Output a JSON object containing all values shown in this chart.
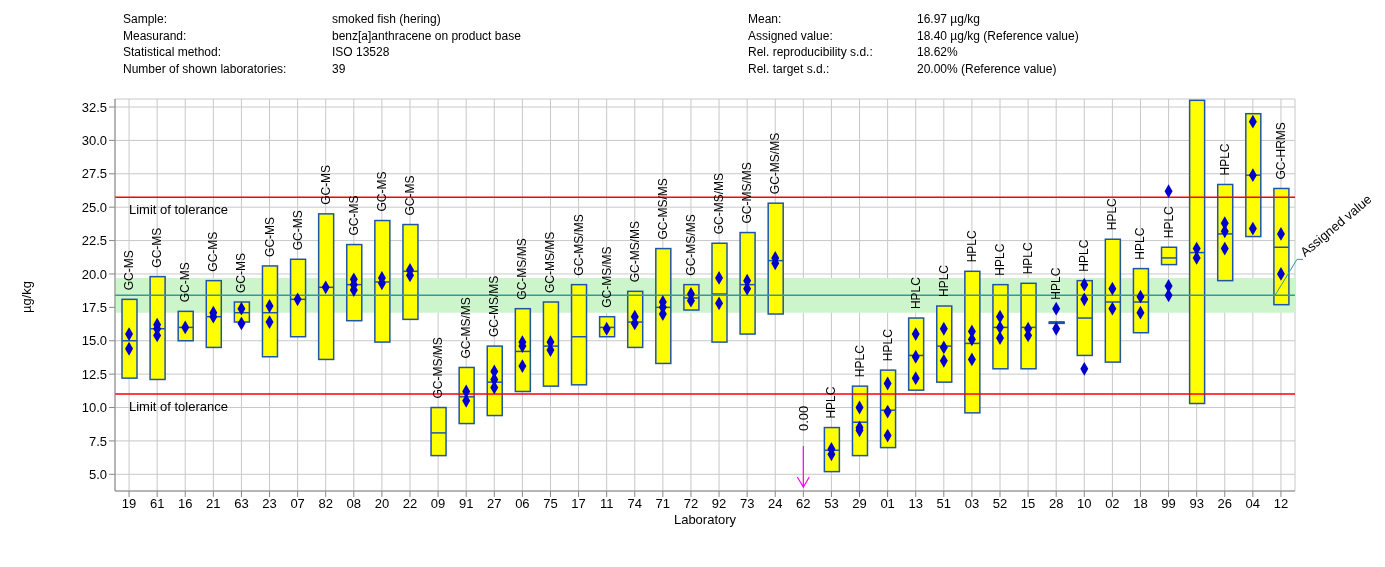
{
  "chart_data": {
    "type": "box",
    "ylabel": "µg/kg",
    "xlabel": "Laboratory",
    "categories": [
      "19",
      "61",
      "16",
      "21",
      "63",
      "23",
      "07",
      "82",
      "08",
      "20",
      "22",
      "09",
      "91",
      "27",
      "06",
      "75",
      "17",
      "11",
      "74",
      "71",
      "72",
      "92",
      "73",
      "24",
      "62",
      "53",
      "29",
      "01",
      "13",
      "51",
      "03",
      "52",
      "15",
      "28",
      "10",
      "02",
      "18",
      "99",
      "93",
      "26",
      "04",
      "12"
    ],
    "ylim": [
      3.75,
      33.1
    ],
    "yticks": [
      {
        "value": 5,
        "label": "5.0"
      },
      {
        "value": 7.5,
        "label": "7.5"
      },
      {
        "value": 10,
        "label": "10.0"
      },
      {
        "value": 12.5,
        "label": "12.5"
      },
      {
        "value": 15,
        "label": "15.0"
      },
      {
        "value": 17.5,
        "label": "17.5"
      },
      {
        "value": 20,
        "label": "20.0"
      },
      {
        "value": 22.5,
        "label": "22.5"
      },
      {
        "value": 25,
        "label": "25.0"
      },
      {
        "value": 27.5,
        "label": "27.5"
      },
      {
        "value": 30,
        "label": "30.0"
      },
      {
        "value": 32.5,
        "label": "32.5"
      }
    ],
    "grid": true,
    "marker": "diamond",
    "series": [
      {
        "type": "box",
        "color": "#ffff00",
        "boxes": [
          {
            "low": 12.2,
            "q1": 12.2,
            "median": 15.0,
            "q3": 18.1,
            "high": 18.1
          },
          {
            "low": 12.1,
            "q1": 12.1,
            "median": 15.9,
            "q3": 19.8,
            "high": 19.8
          },
          {
            "low": 15.0,
            "q1": 15.0,
            "median": 16.0,
            "q3": 17.2,
            "high": 17.2
          },
          {
            "low": 14.5,
            "q1": 14.5,
            "median": 16.8,
            "q3": 19.5,
            "high": 19.5
          },
          {
            "low": 16.4,
            "q1": 16.4,
            "median": 17.1,
            "q3": 17.9,
            "high": 17.9
          },
          {
            "low": 13.8,
            "q1": 13.8,
            "median": 17.1,
            "q3": 20.6,
            "high": 20.6
          },
          {
            "low": 15.3,
            "q1": 15.3,
            "median": 18.1,
            "q3": 21.1,
            "high": 21.1
          },
          {
            "low": 13.6,
            "q1": 13.6,
            "median": 19.0,
            "q3": 24.5,
            "high": 24.5
          },
          {
            "low": 16.5,
            "q1": 16.5,
            "median": 19.2,
            "q3": 22.2,
            "high": 22.2
          },
          {
            "low": 14.9,
            "q1": 14.9,
            "median": 19.4,
            "q3": 24.0,
            "high": 24.0
          },
          {
            "low": 16.6,
            "q1": 16.6,
            "median": 20.2,
            "q3": 23.7,
            "high": 23.7
          },
          {
            "low": 6.4,
            "q1": 6.4,
            "median": 8.1,
            "q3": 10.0,
            "high": 10.0
          },
          {
            "low": 8.8,
            "q1": 8.8,
            "median": 10.8,
            "q3": 13.0,
            "high": 13.0
          },
          {
            "low": 9.4,
            "q1": 9.4,
            "median": 11.9,
            "q3": 14.6,
            "high": 14.6
          },
          {
            "low": 11.2,
            "q1": 11.2,
            "median": 14.2,
            "q3": 17.4,
            "high": 17.4
          },
          {
            "low": 11.6,
            "q1": 11.6,
            "median": 14.6,
            "q3": 17.9,
            "high": 17.9
          },
          {
            "low": 11.7,
            "q1": 11.7,
            "median": 15.3,
            "q3": 19.2,
            "high": 19.2
          },
          {
            "low": 15.3,
            "q1": 15.3,
            "median": 16.0,
            "q3": 16.8,
            "high": 16.8
          },
          {
            "low": 14.5,
            "q1": 14.5,
            "median": 16.4,
            "q3": 18.7,
            "high": 18.7
          },
          {
            "low": 13.3,
            "q1": 13.3,
            "median": 17.5,
            "q3": 21.9,
            "high": 21.9
          },
          {
            "low": 17.3,
            "q1": 17.3,
            "median": 18.2,
            "q3": 19.2,
            "high": 19.2
          },
          {
            "low": 14.9,
            "q1": 14.9,
            "median": 18.5,
            "q3": 22.3,
            "high": 22.3
          },
          {
            "low": 15.5,
            "q1": 15.5,
            "median": 19.2,
            "q3": 23.1,
            "high": 23.1
          },
          {
            "low": 17.0,
            "q1": 17.0,
            "median": 21.0,
            "q3": 25.3,
            "high": 25.3
          },
          null,
          {
            "low": 5.2,
            "q1": 5.2,
            "median": 6.8,
            "q3": 8.5,
            "high": 8.5
          },
          {
            "low": 6.4,
            "q1": 6.4,
            "median": 8.9,
            "q3": 11.6,
            "high": 11.6
          },
          {
            "low": 7.0,
            "q1": 7.0,
            "median": 9.8,
            "q3": 12.8,
            "high": 12.8
          },
          {
            "low": 11.3,
            "q1": 11.3,
            "median": 13.9,
            "q3": 16.7,
            "high": 16.7
          },
          {
            "low": 11.9,
            "q1": 11.9,
            "median": 14.6,
            "q3": 17.6,
            "high": 17.6
          },
          {
            "low": 9.6,
            "q1": 9.6,
            "median": 14.8,
            "q3": 20.2,
            "high": 20.2
          },
          {
            "low": 12.9,
            "q1": 12.9,
            "median": 16.0,
            "q3": 19.2,
            "high": 19.2
          },
          {
            "low": 12.9,
            "q1": 12.9,
            "median": 16.0,
            "q3": 19.3,
            "high": 19.3
          },
          {
            "low": 16.3,
            "q1": 16.3,
            "median": 16.4,
            "q3": 16.4,
            "high": 16.4
          },
          {
            "low": 13.9,
            "q1": 13.9,
            "median": 16.7,
            "q3": 19.5,
            "high": 19.5
          },
          {
            "low": 13.4,
            "q1": 13.4,
            "median": 17.9,
            "q3": 22.6,
            "high": 22.6
          },
          {
            "low": 15.6,
            "q1": 15.6,
            "median": 17.9,
            "q3": 20.4,
            "high": 20.4
          },
          {
            "low": 20.7,
            "q1": 20.7,
            "median": 21.2,
            "q3": 22.0,
            "high": 22.0
          },
          {
            "low": 10.3,
            "q1": 10.3,
            "median": 21.6,
            "q3": 33.0,
            "high": 33.0
          },
          {
            "low": 19.5,
            "q1": 19.5,
            "median": 23.0,
            "q3": 26.7,
            "high": 26.7
          },
          {
            "low": 22.8,
            "q1": 22.8,
            "median": 27.4,
            "q3": 32.0,
            "high": 32.0
          },
          {
            "low": 17.7,
            "q1": 17.7,
            "median": 22.0,
            "q3": 26.4,
            "high": 26.4
          }
        ]
      },
      {
        "type": "scatter",
        "color": "#0000cc",
        "x": [
          "19",
          "61",
          "16",
          "21",
          "63",
          "23",
          "07",
          "82",
          "08",
          "20",
          "22",
          "09",
          "91",
          "27",
          "06",
          "75",
          "17",
          "11",
          "74",
          "71",
          "72",
          "92",
          "73",
          "24",
          "62",
          "53",
          "29",
          "01",
          "13",
          "51",
          "03",
          "52",
          "15",
          "28",
          "10",
          "02",
          "18",
          "99",
          "93",
          "26",
          "04",
          "12"
        ],
        "values": [
          15.5,
          16.2,
          16.0,
          17.1,
          17.4,
          17.6,
          18.1,
          19.0,
          19.6,
          19.7,
          20.3,
          null,
          11.2,
          12.7,
          14.9,
          14.9,
          null,
          15.9,
          16.8,
          17.9,
          18.5,
          19.7,
          19.5,
          21.2,
          null,
          6.9,
          10.0,
          11.8,
          15.5,
          15.9,
          15.7,
          16.8,
          15.9,
          17.4,
          19.2,
          18.9,
          18.3,
          26.2,
          21.9,
          23.8,
          31.4,
          23.0
        ]
      },
      {
        "type": "scatter",
        "color": "#0000cc",
        "x": [
          "19",
          "61",
          "16",
          "21",
          "63",
          "23",
          "07",
          "82",
          "08",
          "20",
          "22",
          "09",
          "91",
          "27",
          "06",
          "75",
          "17",
          "11",
          "74",
          "71",
          "72",
          "92",
          "73",
          "24",
          "62",
          "53",
          "29",
          "01",
          "13",
          "51",
          "03",
          "52",
          "15",
          "28",
          "10",
          "02",
          "18",
          "99",
          "93",
          "26",
          "04",
          "12"
        ],
        "values": [
          14.4,
          15.9,
          null,
          16.8,
          16.3,
          16.4,
          null,
          null,
          19.2,
          19.3,
          19.9,
          null,
          10.5,
          12.1,
          14.6,
          14.3,
          null,
          null,
          16.3,
          17.5,
          18.0,
          17.8,
          18.9,
          20.8,
          null,
          6.5,
          8.5,
          9.7,
          13.8,
          14.5,
          15.1,
          16.0,
          15.4,
          15.9,
          18.1,
          17.4,
          17.1,
          19.1,
          21.2,
          23.2,
          27.4,
          20.0
        ]
      },
      {
        "type": "scatter",
        "color": "#0000cc",
        "x": [
          "19",
          "61",
          "16",
          "21",
          "63",
          "23",
          "07",
          "82",
          "08",
          "20",
          "22",
          "09",
          "91",
          "27",
          "06",
          "75",
          "17",
          "11",
          "74",
          "71",
          "72",
          "92",
          "73",
          "24",
          "62",
          "53",
          "29",
          "01",
          "13",
          "51",
          "03",
          "52",
          "15",
          "28",
          "10",
          "02",
          "18",
          "99",
          "93",
          "26",
          "04",
          "12"
        ],
        "values": [
          null,
          15.4,
          null,
          null,
          null,
          null,
          null,
          null,
          18.8,
          null,
          null,
          null,
          null,
          11.5,
          13.1,
          null,
          null,
          null,
          null,
          17.0,
          null,
          null,
          null,
          null,
          null,
          null,
          8.3,
          7.9,
          12.2,
          13.5,
          13.6,
          15.2,
          null,
          null,
          12.9,
          null,
          null,
          18.4,
          null,
          21.9,
          23.4,
          null
        ]
      }
    ],
    "ref_lines": [
      {
        "axis": "y",
        "value": 25.75,
        "label": "Limit of tolerance",
        "color": "#ff0000"
      },
      {
        "axis": "y",
        "value": 11.02,
        "label": "Limit of tolerance",
        "color": "#ff0000"
      },
      {
        "axis": "y",
        "value": 18.4,
        "label": "Assigned value",
        "color": "#339999"
      }
    ],
    "bands": [
      {
        "axis": "y",
        "from": 17.1,
        "to": 19.7,
        "color": "#ccf5cc"
      }
    ],
    "annotations": [
      "Sample:",
      "smoked fish (hering)",
      "Mean:",
      "16.97 µg/kg",
      "Measurand:",
      "benz[a]anthracene on product base",
      "Assigned value:",
      "18.40 µg/kg (Reference value)",
      "Statistical method:",
      "ISO 13528",
      "Rel. reproducibility s.d.:",
      "18.62%",
      "Number of shown laboratories:",
      "39",
      "Rel. target s.d.:",
      "20.00% (Reference value)",
      {
        "text": "GC-MS",
        "x": "19",
        "y": 18.1
      },
      {
        "text": "GC-MS",
        "x": "61",
        "y": 19.8
      },
      {
        "text": "GC-MS",
        "x": "16",
        "y": 17.2
      },
      {
        "text": "GC-MS",
        "x": "21",
        "y": 19.5
      },
      {
        "text": "GC-MS",
        "x": "63",
        "y": 17.9
      },
      {
        "text": "GC-MS",
        "x": "23",
        "y": 20.6
      },
      {
        "text": "GC-MS",
        "x": "07",
        "y": 21.1
      },
      {
        "text": "GC-MS",
        "x": "82",
        "y": 24.5
      },
      {
        "text": "GC-MS",
        "x": "08",
        "y": 22.2
      },
      {
        "text": "GC-MS",
        "x": "20",
        "y": 24.0
      },
      {
        "text": "GC-MS",
        "x": "22",
        "y": 23.7
      },
      {
        "text": "GC-MS/MS",
        "x": "09",
        "y": 10.0
      },
      {
        "text": "GC-MS/MS",
        "x": "91",
        "y": 13.0
      },
      {
        "text": "GC-MS/MS",
        "x": "27",
        "y": 14.6
      },
      {
        "text": "GC-MS/MS",
        "x": "06",
        "y": 17.4
      },
      {
        "text": "GC-MS/MS",
        "x": "75",
        "y": 17.9
      },
      {
        "text": "GC-MS/MS",
        "x": "17",
        "y": 19.2
      },
      {
        "text": "GC-MS/MS",
        "x": "11",
        "y": 16.8
      },
      {
        "text": "GC-MS/MS",
        "x": "74",
        "y": 18.7
      },
      {
        "text": "GC-MS/MS",
        "x": "71",
        "y": 21.9
      },
      {
        "text": "GC-MS/MS",
        "x": "72",
        "y": 19.2
      },
      {
        "text": "GC-MS/MS",
        "x": "92",
        "y": 22.3
      },
      {
        "text": "GC-MS/MS",
        "x": "73",
        "y": 23.1
      },
      {
        "text": "GC-MS/MS",
        "x": "24",
        "y": 25.3
      },
      "0.00",
      {
        "text": "HPLC",
        "x": "53",
        "y": 8.5
      },
      {
        "text": "HPLC",
        "x": "29",
        "y": 11.6
      },
      {
        "text": "HPLC",
        "x": "01",
        "y": 12.8
      },
      {
        "text": "HPLC",
        "x": "13",
        "y": 16.7
      },
      {
        "text": "HPLC",
        "x": "51",
        "y": 17.6
      },
      {
        "text": "HPLC",
        "x": "03",
        "y": 20.2
      },
      {
        "text": "HPLC",
        "x": "52",
        "y": 19.2
      },
      {
        "text": "HPLC",
        "x": "15",
        "y": 19.3
      },
      {
        "text": "HPLC",
        "x": "28",
        "y": 17.4
      },
      {
        "text": "HPLC",
        "x": "10",
        "y": 19.5
      },
      {
        "text": "HPLC",
        "x": "02",
        "y": 22.6
      },
      {
        "text": "HPLC",
        "x": "18",
        "y": 20.4
      },
      {
        "text": "HPLC",
        "x": "99",
        "y": 22.0
      },
      {
        "text": "HPLC",
        "x": "26",
        "y": 26.7
      },
      {
        "text": "GC-HRMS",
        "x": "12",
        "y": 26.4
      }
    ]
  }
}
